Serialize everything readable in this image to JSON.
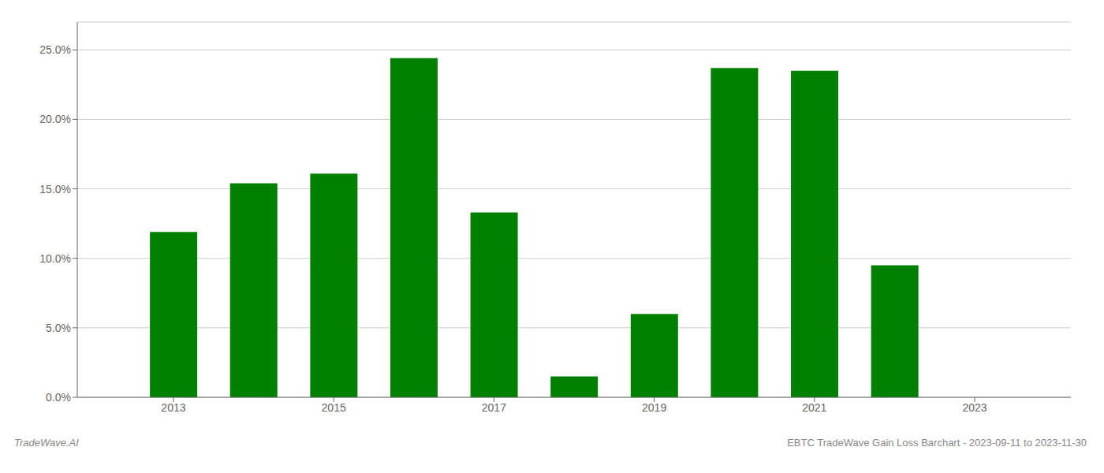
{
  "chart_data": {
    "type": "bar",
    "x": [
      2013,
      2014,
      2015,
      2016,
      2017,
      2018,
      2019,
      2020,
      2021,
      2022,
      2023
    ],
    "values": [
      0.119,
      0.154,
      0.161,
      0.244,
      0.133,
      0.015,
      0.06,
      0.237,
      0.235,
      0.095,
      0.0
    ],
    "color": "#008000",
    "xlim": [
      2011.8,
      2024.2
    ],
    "xticks": [
      2013,
      2015,
      2017,
      2019,
      2021,
      2023
    ],
    "ylim": [
      0,
      0.27
    ],
    "yticks": [
      {
        "value": 0.0,
        "label": "0.0%"
      },
      {
        "value": 0.05,
        "label": "5.0%"
      },
      {
        "value": 0.1,
        "label": "10.0%"
      },
      {
        "value": 0.15,
        "label": "15.0%"
      },
      {
        "value": 0.2,
        "label": "20.0%"
      },
      {
        "value": 0.25,
        "label": "25.0%"
      }
    ],
    "grid": true,
    "annotations": [
      "TradeWave.AI",
      "EBTC TradeWave Gain Loss Barchart - 2023-09-11 to 2023-11-30"
    ]
  }
}
